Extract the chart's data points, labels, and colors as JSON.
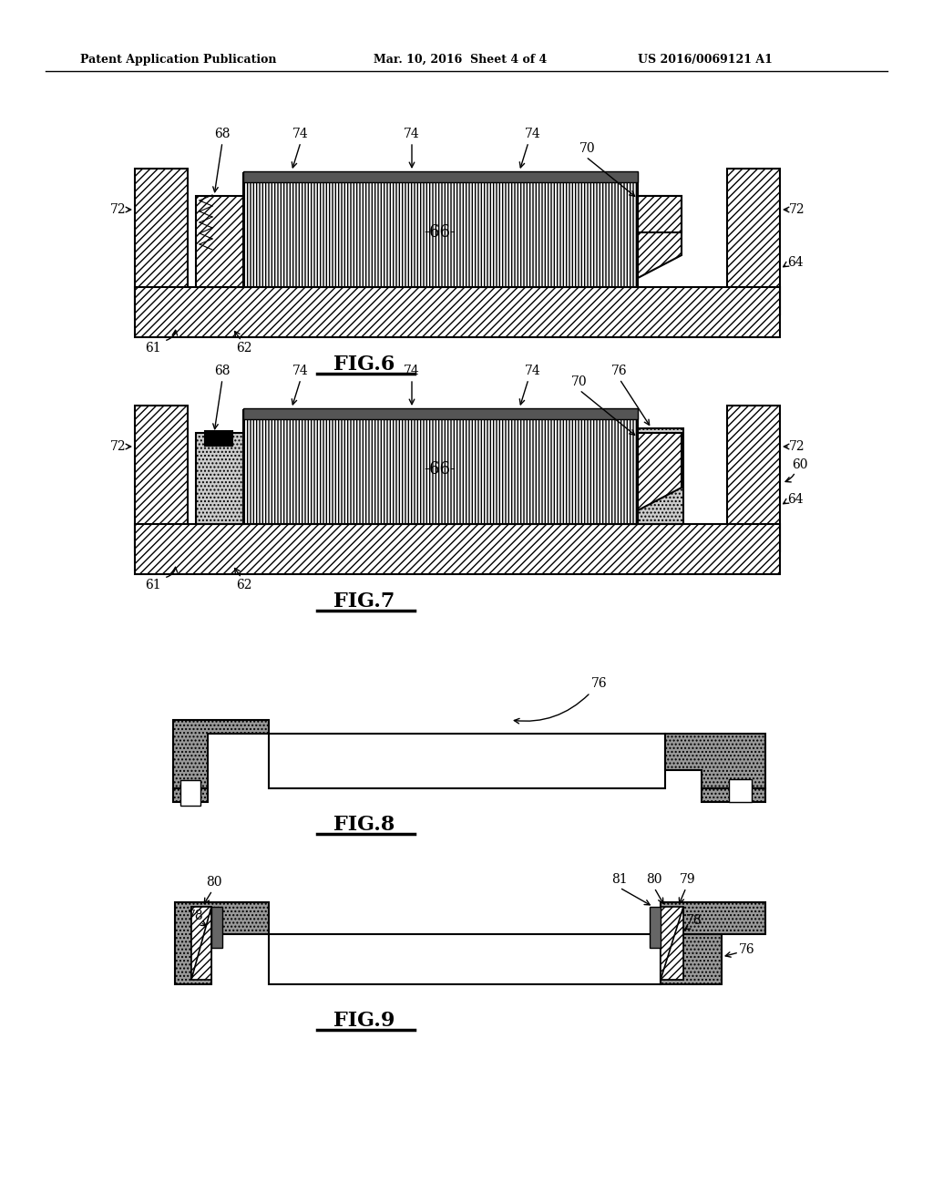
{
  "header_left": "Patent Application Publication",
  "header_mid": "Mar. 10, 2016  Sheet 4 of 4",
  "header_right": "US 2016/0069121 A1",
  "bg_color": "#ffffff"
}
